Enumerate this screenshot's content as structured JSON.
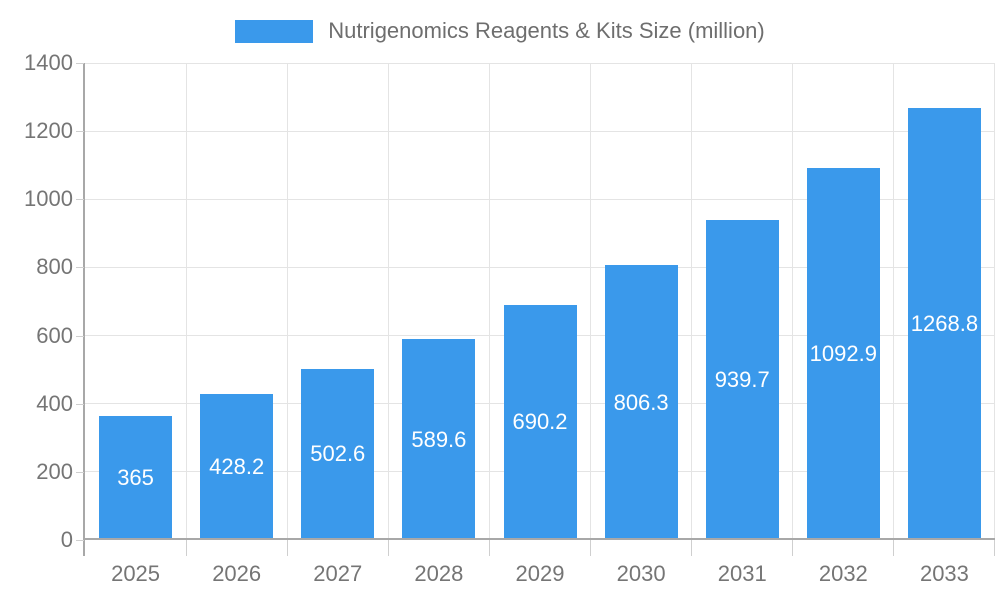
{
  "legend": {
    "label": "Nutrigenomics Reagents & Kits Size (million)"
  },
  "chart_data": {
    "type": "bar",
    "title": "Nutrigenomics Reagents & Kits Size (million)",
    "categories": [
      "2025",
      "2026",
      "2027",
      "2028",
      "2029",
      "2030",
      "2031",
      "2032",
      "2033"
    ],
    "values": [
      365,
      428.2,
      502.6,
      589.6,
      690.2,
      806.3,
      939.7,
      1092.9,
      1268.8
    ],
    "value_labels": [
      "365",
      "428.2",
      "502.6",
      "589.6",
      "690.2",
      "806.3",
      "939.7",
      "1092.9",
      "1268.8"
    ],
    "xlabel": "",
    "ylabel": "",
    "ylim": [
      0,
      1400
    ],
    "yticks": [
      0,
      200,
      400,
      600,
      800,
      1000,
      1200,
      1400
    ],
    "grid": true,
    "legend_position": "top"
  },
  "colors": {
    "bar": "#3A99EB",
    "value_label": "#FFFFFF",
    "axis_line": "#A8A8A8",
    "grid_line": "#E4E4E4",
    "tick_mark": "#CFCFCF",
    "axis_text": "#757575",
    "legend_text": "#6E6E6E",
    "background": "#FFFFFF"
  }
}
